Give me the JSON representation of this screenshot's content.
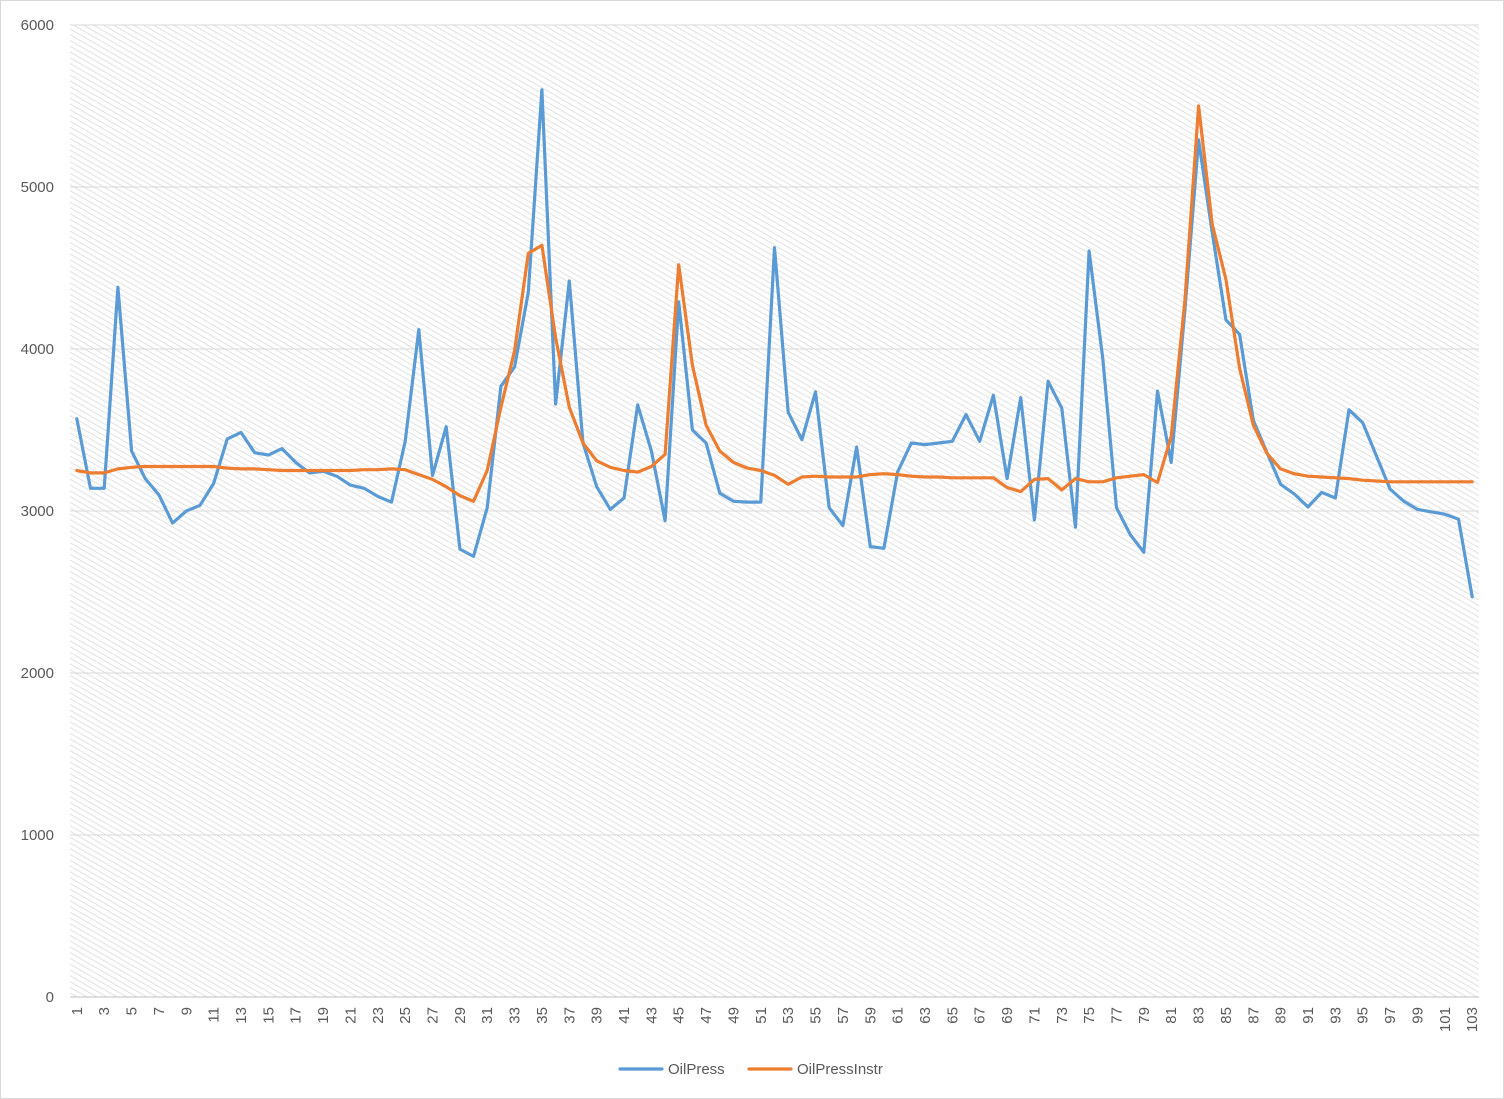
{
  "chart_data": {
    "type": "line",
    "title": "",
    "xlabel": "",
    "ylabel": "",
    "ylim": [
      0,
      6000
    ],
    "yticks": [
      0,
      1000,
      2000,
      3000,
      4000,
      5000,
      6000
    ],
    "grid": true,
    "legend_position": "bottom",
    "x": [
      1,
      2,
      3,
      4,
      5,
      6,
      7,
      8,
      9,
      10,
      11,
      12,
      13,
      14,
      15,
      16,
      17,
      18,
      19,
      20,
      21,
      22,
      23,
      24,
      25,
      26,
      27,
      28,
      29,
      30,
      31,
      32,
      33,
      34,
      35,
      36,
      37,
      38,
      39,
      40,
      41,
      42,
      43,
      44,
      45,
      46,
      47,
      48,
      49,
      50,
      51,
      52,
      53,
      54,
      55,
      56,
      57,
      58,
      59,
      60,
      61,
      62,
      63,
      64,
      65,
      66,
      67,
      68,
      69,
      70,
      71,
      72,
      73,
      74,
      75,
      76,
      77,
      78,
      79,
      80,
      81,
      82,
      83,
      84,
      85,
      86,
      87,
      88,
      89,
      90,
      91,
      92,
      93,
      94,
      95,
      96,
      97,
      98,
      99,
      100,
      101,
      102,
      103
    ],
    "x_tick_labels": [
      "1",
      "3",
      "5",
      "7",
      "9",
      "11",
      "13",
      "15",
      "17",
      "19",
      "21",
      "23",
      "25",
      "27",
      "29",
      "31",
      "33",
      "35",
      "37",
      "39",
      "41",
      "43",
      "45",
      "47",
      "49",
      "51",
      "53",
      "55",
      "57",
      "59",
      "61",
      "63",
      "65",
      "67",
      "69",
      "71",
      "73",
      "75",
      "77",
      "79",
      "81",
      "83",
      "85",
      "87",
      "89",
      "91",
      "93",
      "95",
      "97",
      "99",
      "101",
      "103"
    ],
    "series": [
      {
        "name": "OilPress",
        "color": "#5b9bd5",
        "values": [
          3570,
          3140,
          3140,
          4380,
          3370,
          3200,
          3100,
          2925,
          3000,
          3035,
          3170,
          3445,
          3485,
          3360,
          3345,
          3385,
          3300,
          3235,
          3245,
          3215,
          3160,
          3140,
          3090,
          3055,
          3430,
          4120,
          3220,
          3520,
          2765,
          2720,
          3020,
          3770,
          3890,
          4350,
          5600,
          3660,
          4420,
          3420,
          3150,
          3010,
          3080,
          3655,
          3370,
          2940,
          4290,
          3500,
          3420,
          3110,
          3060,
          3055,
          3055,
          4625,
          3610,
          3440,
          3735,
          3020,
          2910,
          3395,
          2780,
          2770,
          3240,
          3420,
          3410,
          3420,
          3430,
          3595,
          3430,
          3715,
          3200,
          3700,
          2945,
          3800,
          3635,
          2900,
          4605,
          3940,
          3020,
          2855,
          2745,
          3740,
          3300,
          4240,
          5290,
          4720,
          4180,
          4090,
          3560,
          3360,
          3165,
          3105,
          3025,
          3115,
          3080,
          3625,
          3545,
          3340,
          3135,
          3060,
          3010,
          2995,
          2980,
          2950,
          2470
        ]
      },
      {
        "name": "OilPressInstr",
        "color": "#ed7d31",
        "values": [
          3250,
          3235,
          3235,
          3260,
          3270,
          3275,
          3275,
          3275,
          3275,
          3275,
          3275,
          3265,
          3260,
          3260,
          3255,
          3250,
          3250,
          3250,
          3250,
          3250,
          3250,
          3255,
          3255,
          3260,
          3255,
          3225,
          3195,
          3150,
          3095,
          3060,
          3250,
          3640,
          3990,
          4590,
          4640,
          4070,
          3640,
          3420,
          3310,
          3270,
          3250,
          3240,
          3275,
          3350,
          4520,
          3900,
          3530,
          3370,
          3300,
          3265,
          3250,
          3220,
          3165,
          3210,
          3215,
          3210,
          3210,
          3210,
          3225,
          3230,
          3225,
          3215,
          3210,
          3210,
          3205,
          3205,
          3205,
          3205,
          3145,
          3120,
          3195,
          3200,
          3130,
          3200,
          3180,
          3180,
          3205,
          3215,
          3225,
          3175,
          3460,
          4300,
          5500,
          4770,
          4430,
          3880,
          3530,
          3355,
          3260,
          3230,
          3215,
          3210,
          3205,
          3200,
          3190,
          3185,
          3180,
          3180,
          3180,
          3180,
          3180,
          3180,
          3180
        ]
      }
    ]
  }
}
